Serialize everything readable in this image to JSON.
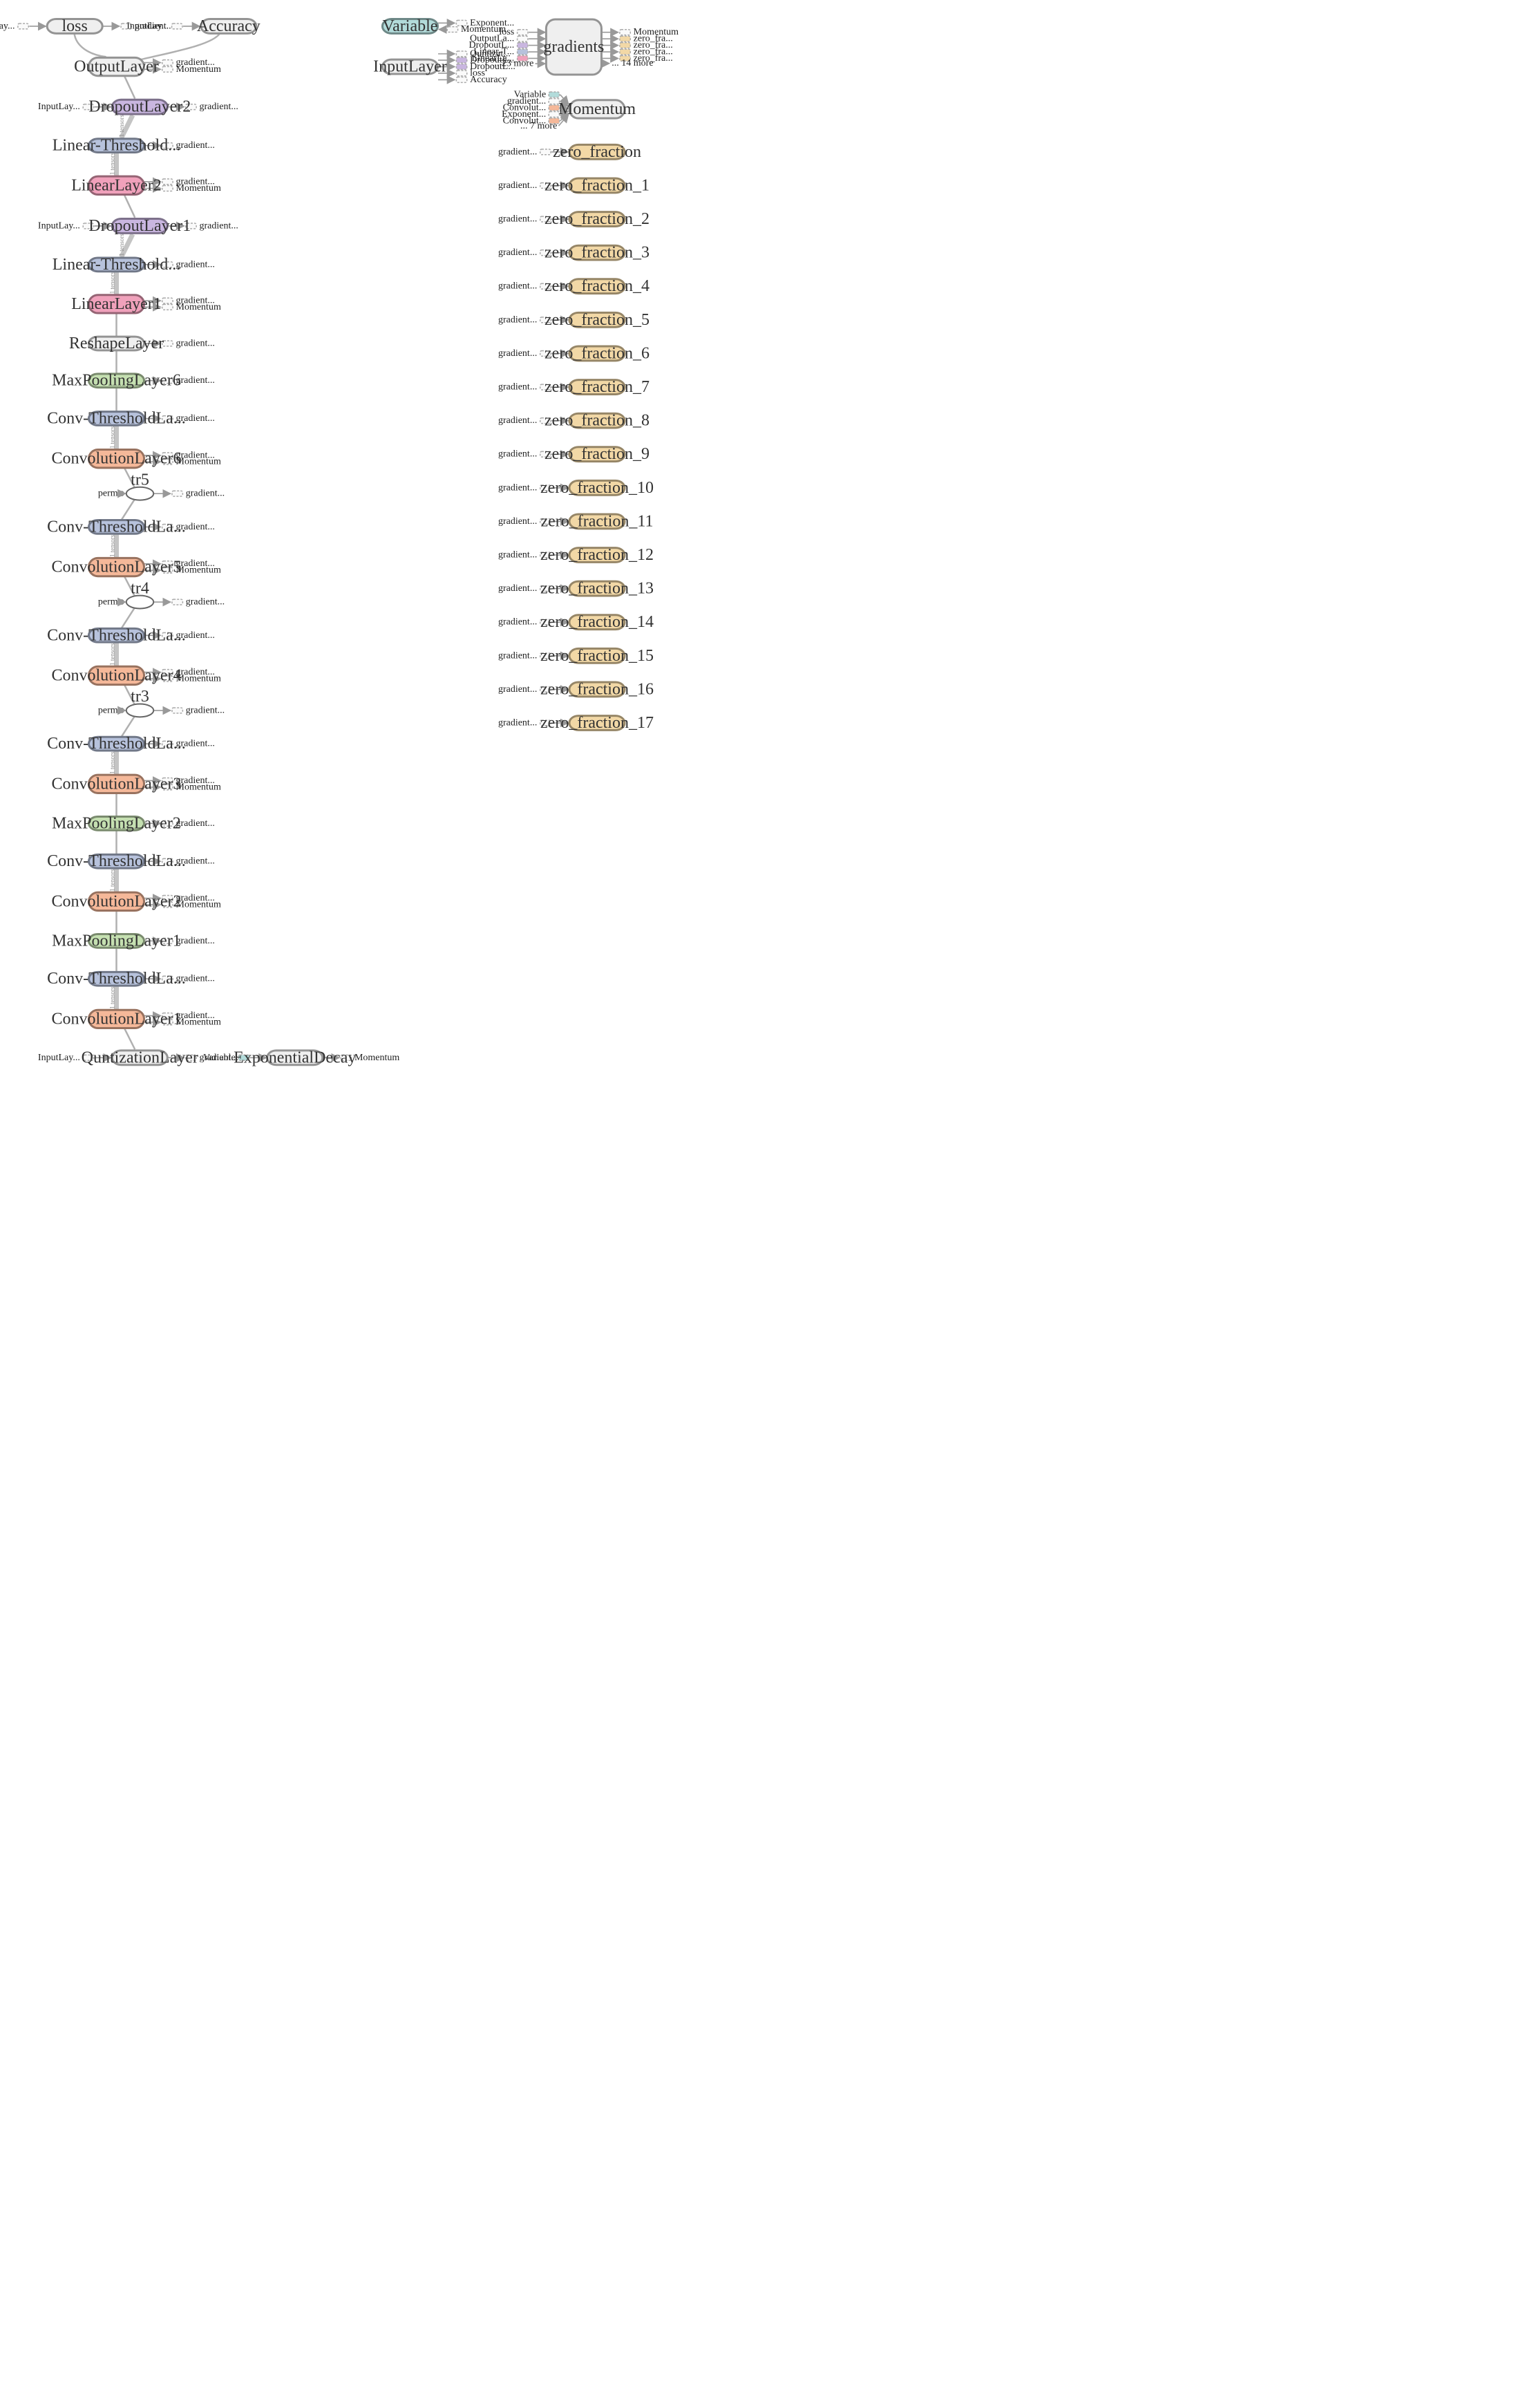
{
  "colors": {
    "default": "#efefef",
    "dropout": "#c9b6e0",
    "linear_threshold": "#b7c2dc",
    "linear": "#f0a1bb",
    "maxpool": "#c5e0b1",
    "conv": "#f5b899",
    "variable": "#b2dbda",
    "zero_fraction": "#f2d8a6"
  },
  "nodes": {
    "loss": "loss",
    "accuracy": "Accuracy",
    "output_layer": "OutputLayer",
    "dropout2": "DropoutLayer2",
    "lt2": "Linear-Threshold...",
    "linear2": "LinearLayer2",
    "dropout1": "DropoutLayer1",
    "lt1": "Linear-Threshold...",
    "linear1": "LinearLayer1",
    "reshape": "ReshapeLayer",
    "maxpool6": "MaxPoolingLayer6",
    "ct6": "Conv-ThresholdLa...",
    "conv6": "ConvolutionLayer6",
    "tr5": "tr5",
    "ct5": "Conv-ThresholdLa...",
    "conv5": "ConvolutionLayer5",
    "tr4": "tr4",
    "ct4": "Conv-ThresholdLa...",
    "conv4": "ConvolutionLayer4",
    "tr3": "tr3",
    "ct3": "Conv-ThresholdLa...",
    "conv3": "ConvolutionLayer3",
    "maxpool2": "MaxPoolingLayer2",
    "ct2": "Conv-ThresholdLa...",
    "conv2": "ConvolutionLayer2",
    "maxpool1": "MaxPoolingLayer1",
    "ct1": "Conv-ThresholdLa...",
    "conv1": "ConvolutionLayer1",
    "quantization": "QuntizationLayer",
    "exp_decay": "ExponentialDecay",
    "variable": "Variable",
    "input_layer": "InputLayer",
    "gradients": "gradients",
    "momentum": "Momentum",
    "zero_fractions": [
      "zero_fraction",
      "zero_fraction_1",
      "zero_fraction_2",
      "zero_fraction_3",
      "zero_fraction_4",
      "zero_fraction_5",
      "zero_fraction_6",
      "zero_fraction_7",
      "zero_fraction_8",
      "zero_fraction_9",
      "zero_fraction_10",
      "zero_fraction_11",
      "zero_fraction_12",
      "zero_fraction_13",
      "zero_fraction_14",
      "zero_fraction_15",
      "zero_fraction_16",
      "zero_fraction_17"
    ]
  },
  "aux_labels": {
    "gradient": "gradient...",
    "gradient_short": "gradient...",
    "momentum": "Momentum",
    "input_lay": "InputLay...",
    "perm": "perm",
    "variable": "Variable",
    "exponent": "Exponent...",
    "quntizat": "Quntizat...",
    "dropout_l": "DropoutL...",
    "loss": "loss",
    "accuracy": "Accuracy",
    "outputla": "OutputLa...",
    "linear_t": "Linear-T...",
    "linearla": "LinearLa...",
    "convolut": "Convolut...",
    "more23": "... 23 more",
    "more14": "... 14 more",
    "more7": "... 7 more",
    "zero_fra": "zero_fra...",
    "tensors": "1 tensors"
  }
}
